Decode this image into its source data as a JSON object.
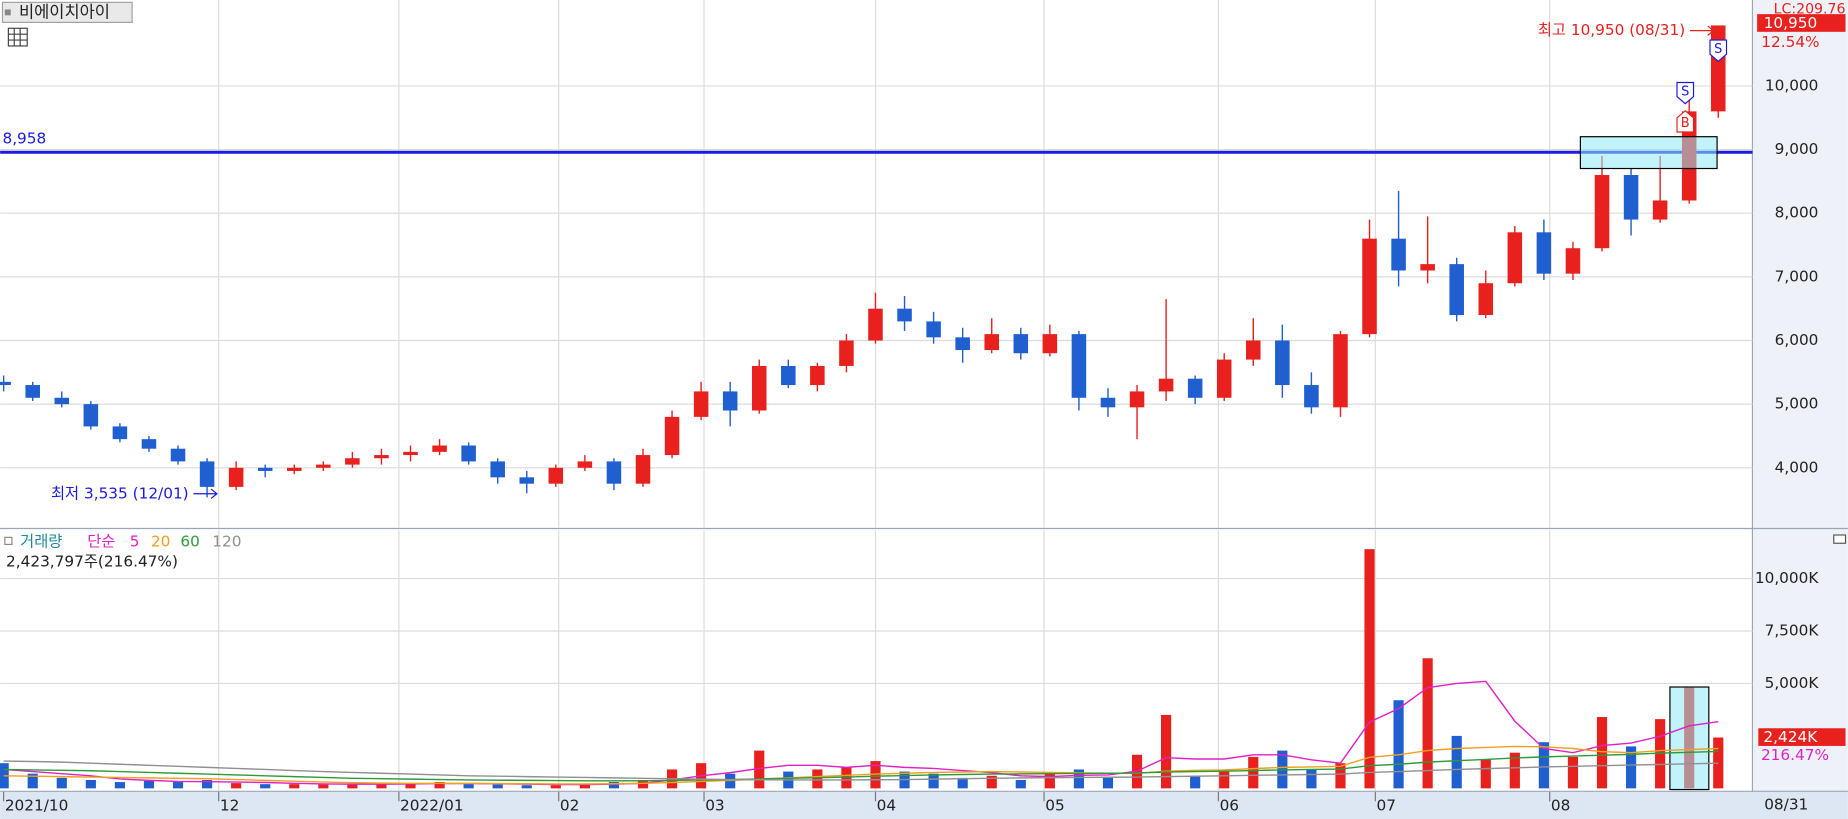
{
  "chart_data": {
    "type": "candlestick",
    "title": "비에이치아이",
    "up_color": "#e8201e",
    "down_color": "#1f5fd0",
    "open": [
      5350,
      5300,
      5100,
      5000,
      4650,
      4450,
      4300,
      4100,
      3700,
      4000,
      3950,
      4000,
      4050,
      4150,
      4200,
      4250,
      4350,
      4100,
      3850,
      3750,
      4000,
      4100,
      3750,
      4200,
      4800,
      5200,
      4900,
      5600,
      5300,
      5600,
      6000,
      6500,
      6300,
      6050,
      5850,
      6100,
      5800,
      6100,
      5100,
      4950,
      5200,
      5400,
      5100,
      5700,
      6000,
      5300,
      4950,
      6100,
      7600,
      7100,
      7200,
      6400,
      6900,
      7700,
      7050,
      7450,
      8600,
      7900,
      8200,
      9600
    ],
    "high": [
      5450,
      5350,
      5200,
      5050,
      4700,
      4500,
      4350,
      4150,
      4100,
      4050,
      4050,
      4100,
      4250,
      4300,
      4350,
      4450,
      4400,
      4150,
      3950,
      4050,
      4200,
      4150,
      4300,
      4900,
      5350,
      5350,
      5700,
      5700,
      5650,
      6100,
      6750,
      6700,
      6450,
      6200,
      6350,
      6200,
      6250,
      6150,
      5250,
      5300,
      6650,
      5450,
      5800,
      6350,
      6250,
      5500,
      6150,
      7900,
      8350,
      7950,
      7300,
      7100,
      7800,
      7900,
      7550,
      8900,
      8700,
      8900,
      10050,
      10950
    ],
    "low": [
      5200,
      5050,
      4950,
      4600,
      4400,
      4250,
      4050,
      3535,
      3650,
      3850,
      3900,
      3950,
      4000,
      4050,
      4100,
      4200,
      4050,
      3750,
      3600,
      3700,
      3950,
      3650,
      3700,
      4150,
      4750,
      4650,
      4850,
      5250,
      5200,
      5500,
      5950,
      6150,
      5950,
      5650,
      5800,
      5700,
      5750,
      4900,
      4800,
      4450,
      5050,
      5000,
      5050,
      5600,
      5100,
      4850,
      4800,
      6050,
      6850,
      6900,
      6300,
      6350,
      6850,
      6950,
      6950,
      7400,
      7650,
      7850,
      8150,
      9500
    ],
    "close": [
      5300,
      5100,
      5000,
      4650,
      4450,
      4300,
      4100,
      3700,
      4000,
      3950,
      4000,
      4050,
      4150,
      4200,
      4250,
      4350,
      4100,
      3850,
      3750,
      4000,
      4100,
      3750,
      4200,
      4800,
      5200,
      4900,
      5600,
      5300,
      5600,
      6000,
      6500,
      6300,
      6050,
      5850,
      6100,
      5800,
      6100,
      5100,
      4950,
      5200,
      5400,
      5100,
      5700,
      6000,
      5300,
      4950,
      6100,
      7600,
      7100,
      7200,
      6400,
      6900,
      7700,
      7050,
      7450,
      8600,
      7900,
      8200,
      9600,
      10950
    ],
    "ylim": [
      3055,
      11350
    ],
    "yticks": [
      {
        "value": 4000,
        "label": "4,000"
      },
      {
        "value": 5000,
        "label": "5,000"
      },
      {
        "value": 6000,
        "label": "6,000"
      },
      {
        "value": 7000,
        "label": "7,000"
      },
      {
        "value": 8000,
        "label": "8,000"
      },
      {
        "value": 9000,
        "label": "9,000"
      },
      {
        "value": 10000,
        "label": "10,000"
      }
    ],
    "xlim": [
      -0.12,
      59.12
    ],
    "xticks": [
      {
        "value": 0,
        "label": "2021/10"
      },
      {
        "value": 7.4,
        "label": "12"
      },
      {
        "value": 13.6,
        "label": "2022/01"
      },
      {
        "value": 19.1,
        "label": "02"
      },
      {
        "value": 24.1,
        "label": "03"
      },
      {
        "value": 30.0,
        "label": "04"
      },
      {
        "value": 35.8,
        "label": "05"
      },
      {
        "value": 41.8,
        "label": "06"
      },
      {
        "value": 47.2,
        "label": "07"
      },
      {
        "value": 53.2,
        "label": "08"
      }
    ],
    "last_date": "08/31",
    "hline": {
      "value": 8958,
      "label": "8,958"
    },
    "high_note": "최고 10,950 (08/31)",
    "low_note": "최저 3,535 (12/01)",
    "last_price_label": "10,950",
    "change_label": "12.54%",
    "lc_label": "LC:209.76",
    "signals": [
      "S",
      "B",
      "S"
    ],
    "volume": {
      "title": "거래량",
      "ma_title": "단순",
      "summary": "2,423,797주(216.47%)",
      "values": [
        1200,
        700,
        500,
        400,
        300,
        350,
        300,
        400,
        250,
        200,
        200,
        180,
        180,
        200,
        220,
        300,
        200,
        180,
        150,
        150,
        200,
        300,
        400,
        900,
        1200,
        700,
        1800,
        800,
        900,
        1000,
        1300,
        800,
        700,
        500,
        600,
        400,
        700,
        900,
        500,
        1600,
        3500,
        600,
        800,
        1500,
        1800,
        900,
        1200,
        11400,
        4200,
        6200,
        2500,
        1400,
        1700,
        2200,
        1500,
        3400,
        2000,
        3300,
        4800,
        2423.797
      ],
      "last_label": "2,424K",
      "ratio_label": "216.47%",
      "ylim": [
        0,
        12300
      ],
      "yticks": [
        {
          "value": 5000,
          "label": "5,000K"
        },
        {
          "value": 7500,
          "label": "7,500K"
        },
        {
          "value": 10000,
          "label": "10,000K"
        }
      ],
      "series": [
        {
          "name": "5",
          "color": "#e020c8",
          "values": [
            900,
            800,
            700,
            600,
            450,
            380,
            330,
            320,
            300,
            280,
            240,
            210,
            200,
            200,
            210,
            230,
            230,
            220,
            200,
            180,
            180,
            200,
            240,
            400,
            600,
            750,
            950,
            1100,
            1100,
            1000,
            1100,
            1000,
            950,
            850,
            750,
            600,
            560,
            620,
            640,
            820,
            1460,
            1400,
            1400,
            1600,
            1600,
            1360,
            1200,
            3160,
            3800,
            4800,
            5000,
            5100,
            3200,
            1900,
            1700,
            2040,
            2160,
            2480,
            2980,
            3180
          ]
        },
        {
          "name": "20",
          "color": "#f0a020",
          "values": [
            600,
            580,
            560,
            540,
            520,
            500,
            480,
            460,
            420,
            380,
            340,
            300,
            270,
            250,
            240,
            240,
            240,
            230,
            220,
            210,
            210,
            220,
            240,
            280,
            330,
            380,
            440,
            500,
            560,
            620,
            680,
            720,
            760,
            780,
            800,
            780,
            760,
            740,
            720,
            720,
            820,
            860,
            880,
            940,
            1000,
            1020,
            1050,
            1480,
            1600,
            1800,
            1900,
            1950,
            2000,
            1980,
            1900,
            1750,
            1700,
            1800,
            1850,
            1900
          ]
        },
        {
          "name": "60",
          "color": "#2e9a3a",
          "values": [
            900,
            880,
            860,
            840,
            800,
            760,
            720,
            680,
            640,
            600,
            560,
            520,
            480,
            460,
            440,
            420,
            400,
            390,
            380,
            370,
            360,
            360,
            360,
            380,
            400,
            420,
            450,
            480,
            510,
            540,
            580,
            610,
            640,
            660,
            680,
            690,
            700,
            710,
            720,
            730,
            780,
            800,
            820,
            850,
            880,
            900,
            920,
            1080,
            1150,
            1250,
            1320,
            1380,
            1450,
            1500,
            1540,
            1580,
            1620,
            1680,
            1720,
            1760
          ]
        },
        {
          "name": "120",
          "color": "#909090",
          "values": [
            1300,
            1280,
            1250,
            1200,
            1150,
            1100,
            1050,
            1000,
            950,
            900,
            850,
            800,
            760,
            720,
            680,
            640,
            600,
            580,
            560,
            540,
            520,
            500,
            480,
            460,
            440,
            420,
            410,
            400,
            400,
            400,
            410,
            420,
            440,
            460,
            480,
            500,
            510,
            520,
            530,
            540,
            560,
            580,
            600,
            620,
            640,
            660,
            680,
            760,
            800,
            850,
            900,
            940,
            980,
            1020,
            1050,
            1080,
            1110,
            1140,
            1170,
            1200
          ]
        }
      ]
    }
  }
}
